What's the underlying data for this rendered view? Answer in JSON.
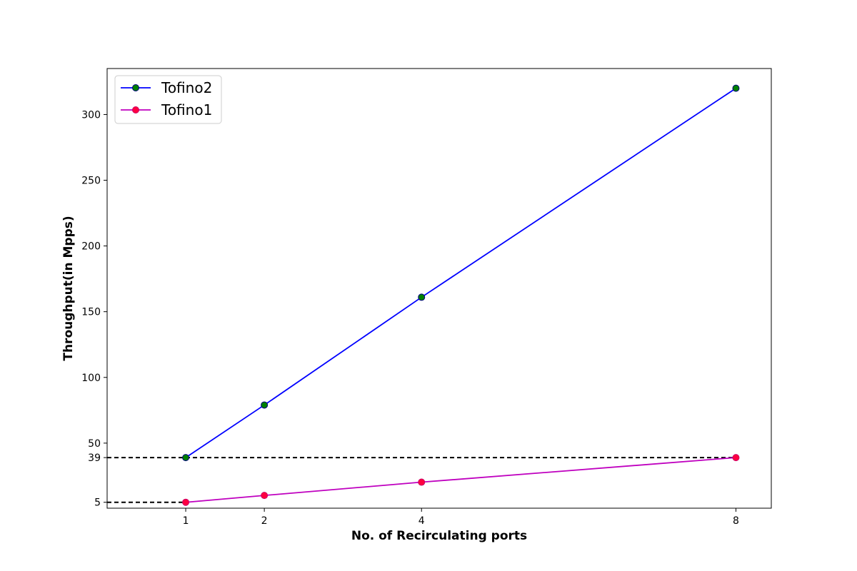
{
  "chart_data": {
    "type": "line",
    "title": "",
    "xlabel": "No. of Recirculating ports",
    "ylabel": "Throughput(in Mpps)",
    "x": [
      1,
      2,
      4,
      8
    ],
    "xlim": [
      0,
      8.45
    ],
    "ylim": [
      0.5,
      335
    ],
    "xticks": [
      "1",
      "2",
      "4",
      "8"
    ],
    "yticks": [
      5,
      39,
      50,
      100,
      150,
      200,
      250,
      300
    ],
    "ytick_labels": [
      "5",
      "39",
      "50",
      "100",
      "150",
      "200",
      "250",
      "300"
    ],
    "grid": false,
    "legend_position": "top-left",
    "series": [
      {
        "name": "Tofino2",
        "values": [
          39,
          79,
          161,
          320
        ],
        "line_color": "#0000ff",
        "marker_face": "#008000",
        "marker_edge": "#000080"
      },
      {
        "name": "Tofino1",
        "values": [
          5,
          10.2,
          20.3,
          39
        ],
        "line_color": "#bf00bf",
        "marker_face": "#ff0040",
        "marker_edge": "#cc0066"
      }
    ],
    "reference_lines": [
      {
        "y": 39,
        "x_end": 8,
        "color": "#000000",
        "style": "dashed"
      },
      {
        "y": 5,
        "x_end": 1,
        "color": "#000000",
        "style": "dashed"
      }
    ]
  }
}
